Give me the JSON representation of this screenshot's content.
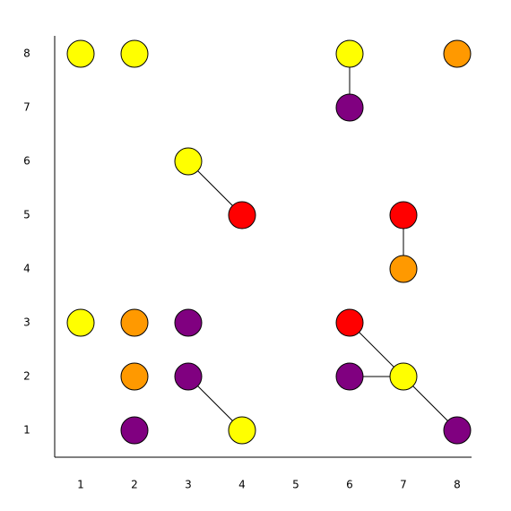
{
  "board": {
    "xticks": [
      1,
      2,
      3,
      4,
      5,
      6,
      7,
      8
    ],
    "yticks": [
      1,
      2,
      3,
      4,
      5,
      6,
      7,
      8
    ],
    "nodes": [
      {
        "x": 1,
        "y": 8,
        "color": "#ffff00"
      },
      {
        "x": 2,
        "y": 8,
        "color": "#ffff00"
      },
      {
        "x": 6,
        "y": 8,
        "color": "#ffff00"
      },
      {
        "x": 8,
        "y": 8,
        "color": "#ff9900"
      },
      {
        "x": 6,
        "y": 7,
        "color": "#800080"
      },
      {
        "x": 3,
        "y": 6,
        "color": "#ffff00"
      },
      {
        "x": 4,
        "y": 5,
        "color": "#ff0000"
      },
      {
        "x": 7,
        "y": 5,
        "color": "#ff0000"
      },
      {
        "x": 7,
        "y": 4,
        "color": "#ff9900"
      },
      {
        "x": 1,
        "y": 3,
        "color": "#ffff00"
      },
      {
        "x": 2,
        "y": 3,
        "color": "#ff9900"
      },
      {
        "x": 3,
        "y": 3,
        "color": "#800080"
      },
      {
        "x": 6,
        "y": 3,
        "color": "#ff0000"
      },
      {
        "x": 2,
        "y": 2,
        "color": "#ff9900"
      },
      {
        "x": 3,
        "y": 2,
        "color": "#800080"
      },
      {
        "x": 6,
        "y": 2,
        "color": "#800080"
      },
      {
        "x": 7,
        "y": 2,
        "color": "#ffff00"
      },
      {
        "x": 2,
        "y": 1,
        "color": "#800080"
      },
      {
        "x": 4,
        "y": 1,
        "color": "#ffff00"
      },
      {
        "x": 8,
        "y": 1,
        "color": "#800080"
      }
    ],
    "edges": [
      {
        "from": 2,
        "to": 4
      },
      {
        "from": 5,
        "to": 6
      },
      {
        "from": 7,
        "to": 8
      },
      {
        "from": 12,
        "to": 16
      },
      {
        "from": 16,
        "to": 19
      },
      {
        "from": 15,
        "to": 16
      },
      {
        "from": 14,
        "to": 18
      }
    ]
  }
}
